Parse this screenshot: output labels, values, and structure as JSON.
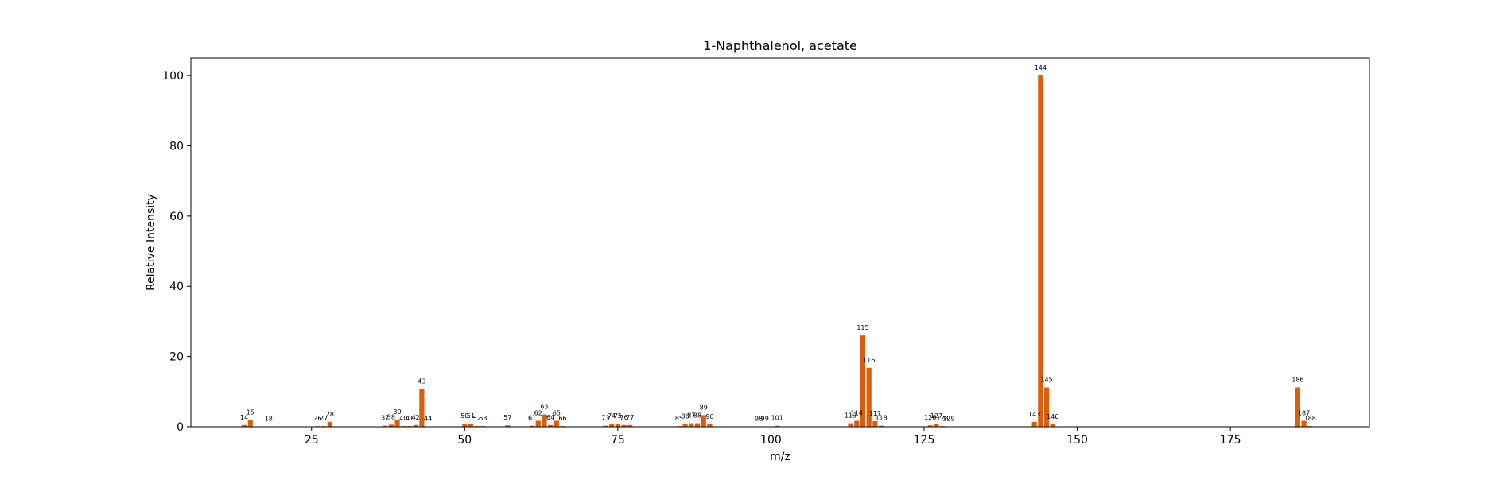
{
  "chart_data": {
    "type": "bar",
    "title": "1-Naphthalenol, acetate",
    "xlabel": "m/z",
    "ylabel": "Relative Intensity",
    "xlim": [
      5.3,
      197.7
    ],
    "ylim": [
      0,
      105
    ],
    "xticks": [
      25,
      50,
      75,
      100,
      125,
      150,
      175
    ],
    "yticks": [
      0,
      20,
      40,
      60,
      80,
      100
    ],
    "grid": false,
    "legend": "none",
    "bar_color": "#d95f0e",
    "x": [
      14,
      15,
      18,
      26,
      27,
      28,
      37,
      38,
      39,
      40,
      41,
      42,
      43,
      44,
      50,
      51,
      52,
      53,
      57,
      61,
      62,
      63,
      64,
      65,
      66,
      73,
      74,
      75,
      76,
      77,
      85,
      86,
      87,
      88,
      89,
      90,
      98,
      99,
      101,
      113,
      114,
      115,
      116,
      117,
      118,
      126,
      127,
      128,
      129,
      143,
      144,
      145,
      146,
      186,
      187,
      188
    ],
    "values": [
      0.5,
      1.9,
      0.1,
      0.2,
      0.2,
      1.4,
      0.3,
      0.6,
      2.0,
      0.2,
      0.2,
      0.5,
      10.8,
      0.1,
      0.9,
      0.9,
      0.2,
      0.2,
      0.4,
      0.3,
      1.7,
      3.5,
      0.5,
      1.7,
      0.2,
      0.3,
      0.9,
      0.9,
      0.5,
      0.5,
      0.2,
      0.8,
      1.0,
      1.0,
      3.3,
      0.7,
      0.1,
      0.1,
      0.3,
      1.0,
      1.7,
      26.0,
      16.8,
      1.6,
      0.3,
      0.4,
      0.9,
      0.2,
      0.1,
      1.4,
      100.0,
      11.2,
      0.7,
      11.2,
      1.7,
      0.2
    ],
    "labels": [
      "14",
      "15",
      "18",
      "26",
      "27",
      "28",
      "37",
      "38",
      "39",
      "40",
      "41",
      "42",
      "43",
      "44",
      "50",
      "51",
      "52",
      "53",
      "57",
      "61",
      "62",
      "63",
      "64",
      "65",
      "66",
      "73",
      "74",
      "75",
      "76",
      "77",
      "85",
      "86",
      "87",
      "88",
      "89",
      "90",
      "98",
      "99",
      "101",
      "113",
      "114",
      "115",
      "116",
      "117",
      "118",
      "126",
      "127",
      "128",
      "129",
      "143",
      "144",
      "145",
      "146",
      "186",
      "187",
      "188"
    ]
  }
}
